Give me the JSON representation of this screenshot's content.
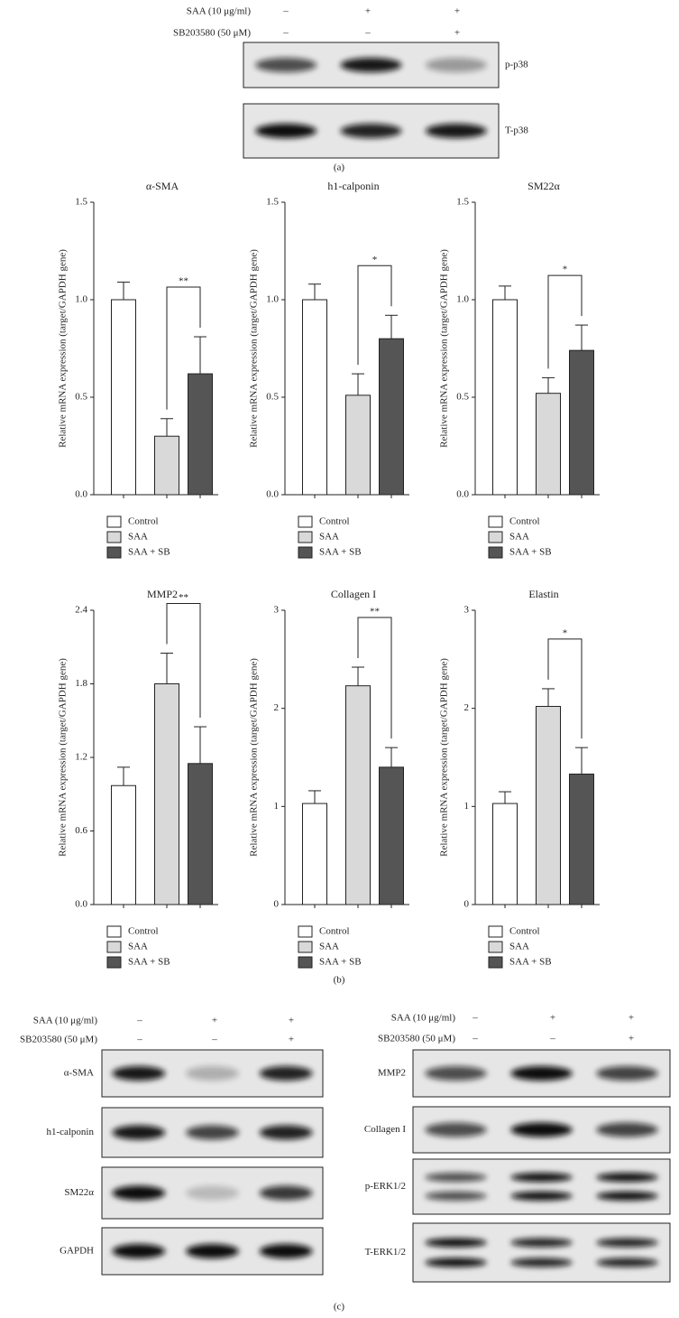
{
  "panels": [
    "(a)",
    "(b)",
    "(c)"
  ],
  "blots": [
    {
      "conditions": [
        {
          "label": "SAA (10 μg/ml)",
          "signs": [
            "–",
            "+",
            "+"
          ]
        },
        {
          "label": "SB203580 (50 μM)",
          "signs": [
            "–",
            "–",
            "+"
          ]
        }
      ],
      "proteins": [
        "p-p38",
        "T-p38"
      ]
    },
    {
      "conditions": [
        {
          "label": "SAA (10 μg/ml)",
          "signs": [
            "–",
            "+",
            "+"
          ]
        },
        {
          "label": "SB203580 (50 μM)",
          "signs": [
            "–",
            "–",
            "+"
          ]
        }
      ],
      "proteins": [
        "α-SMA",
        "h1-calponin",
        "SM22α",
        "GAPDH"
      ]
    },
    {
      "conditions": [
        {
          "label": "SAA (10 μg/ml)",
          "signs": [
            "–",
            "+",
            "+"
          ]
        },
        {
          "label": "SB203580 (50 μM)",
          "signs": [
            "–",
            "–",
            "+"
          ]
        }
      ],
      "proteins": [
        "MMP2",
        "Collagen I",
        "p-ERK1/2",
        "T-ERK1/2"
      ]
    }
  ],
  "chart_data": [
    {
      "type": "bar",
      "title": "α-SMA",
      "ylabel": "Relative mRNA expression (target/GAPDH gene)",
      "categories": [
        "Control",
        "SAA",
        "SAA + SB"
      ],
      "values": [
        1.0,
        0.3,
        0.62
      ],
      "errors": [
        0.09,
        0.09,
        0.19
      ],
      "colors": [
        "#ffffff",
        "#d9d9d9",
        "#555555"
      ],
      "ylim": [
        0,
        1.5
      ],
      "yticks": [
        {
          "value": 0,
          "label": "0.0"
        },
        0.5,
        {
          "value": 1,
          "label": "1.0"
        },
        1.5
      ],
      "annotation": "**"
    },
    {
      "type": "bar",
      "title": "h1-calponin",
      "ylabel": "Relative mRNA expression (target/GAPDH gene)",
      "categories": [
        "Control",
        "SAA",
        "SAA + SB"
      ],
      "values": [
        1.0,
        0.51,
        0.8
      ],
      "errors": [
        0.08,
        0.11,
        0.12
      ],
      "colors": [
        "#ffffff",
        "#d9d9d9",
        "#555555"
      ],
      "ylim": [
        0,
        1.5
      ],
      "yticks": [
        {
          "value": 0,
          "label": "0.0"
        },
        0.5,
        {
          "value": 1,
          "label": "1.0"
        },
        1.5
      ],
      "annotation": "*"
    },
    {
      "type": "bar",
      "title": "SM22α",
      "ylabel": "Relative mRNA expression (target/GAPDH gene)",
      "categories": [
        "Control",
        "SAA",
        "SAA + SB"
      ],
      "values": [
        1.0,
        0.52,
        0.74
      ],
      "errors": [
        0.07,
        0.08,
        0.13
      ],
      "colors": [
        "#ffffff",
        "#d9d9d9",
        "#555555"
      ],
      "ylim": [
        0,
        1.5
      ],
      "yticks": [
        {
          "value": 0,
          "label": "0.0"
        },
        0.5,
        {
          "value": 1,
          "label": "1.0"
        },
        1.5
      ],
      "annotation": "*"
    },
    {
      "type": "bar",
      "title": "MMP2",
      "ylabel": "Relative mRNA expression (target/GAPDH gene)",
      "categories": [
        "Control",
        "SAA",
        "SAA + SB"
      ],
      "values": [
        0.97,
        1.8,
        1.15
      ],
      "errors": [
        0.15,
        0.25,
        0.3
      ],
      "colors": [
        "#ffffff",
        "#d9d9d9",
        "#555555"
      ],
      "ylim": [
        0,
        2.4
      ],
      "yticks": [
        {
          "value": 0,
          "label": "0.0"
        },
        0.6,
        1.2,
        1.8,
        2.4
      ],
      "annotation": "**"
    },
    {
      "type": "bar",
      "title": "Collagen I",
      "ylabel": "Relative mRNA expression (target/GAPDH gene)",
      "categories": [
        "Control",
        "SAA",
        "SAA + SB"
      ],
      "values": [
        1.03,
        2.23,
        1.4
      ],
      "errors": [
        0.13,
        0.19,
        0.2
      ],
      "colors": [
        "#ffffff",
        "#d9d9d9",
        "#555555"
      ],
      "ylim": [
        0,
        3
      ],
      "yticks": [
        0,
        1,
        2,
        3
      ],
      "annotation": "**"
    },
    {
      "type": "bar",
      "title": "Elastin",
      "ylabel": "Relative mRNA expression (target/GAPDH gene)",
      "categories": [
        "Control",
        "SAA",
        "SAA + SB"
      ],
      "values": [
        1.03,
        2.02,
        1.33
      ],
      "errors": [
        0.12,
        0.18,
        0.27
      ],
      "colors": [
        "#ffffff",
        "#d9d9d9",
        "#555555"
      ],
      "ylim": [
        0,
        3
      ],
      "yticks": [
        0,
        1,
        2,
        3
      ],
      "annotation": "*"
    }
  ]
}
